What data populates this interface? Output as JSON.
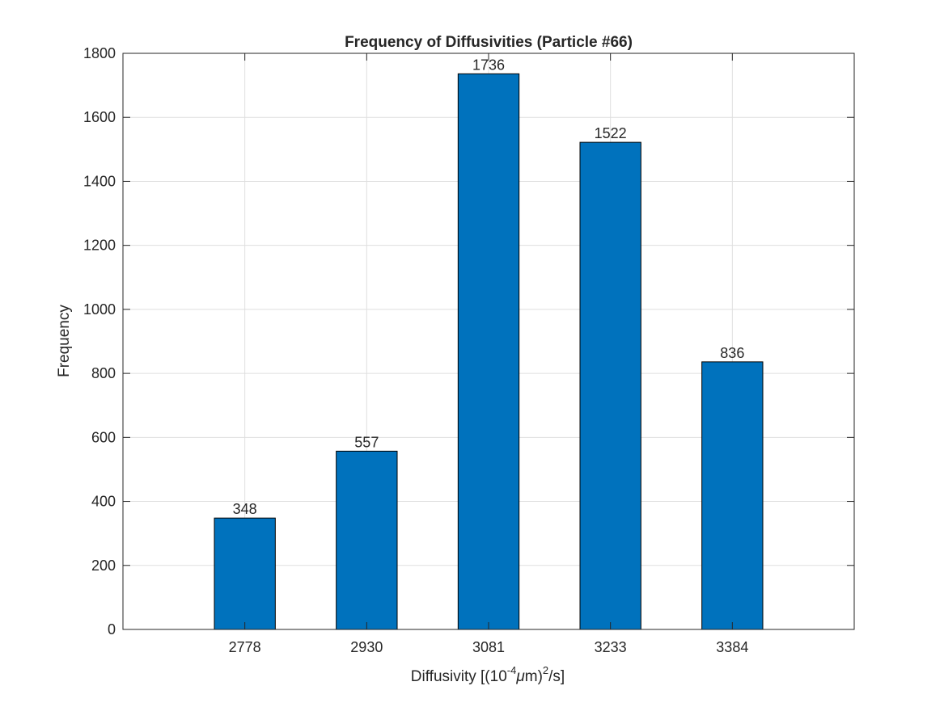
{
  "chart_data": {
    "type": "bar",
    "title": "Frequency of Diffusivities (Particle #66)",
    "xlabel": {
      "prefix": "Diffusivity [(10",
      "exponent": "-4",
      "mu": "μ",
      "unit": "m)",
      "power": "2",
      "suffix": "/s]"
    },
    "ylabel": "Frequency",
    "categories": [
      "2778",
      "2930",
      "3081",
      "3233",
      "3384"
    ],
    "values": [
      348,
      557,
      1736,
      1522,
      836
    ],
    "data_labels": [
      "348",
      "557",
      "1736",
      "1522",
      "836"
    ],
    "ylim": [
      0,
      1800
    ],
    "yticks": [
      "0",
      "200",
      "400",
      "600",
      "800",
      "1000",
      "1200",
      "1400",
      "1600",
      "1800"
    ],
    "grid": true,
    "bar_color": "#0072BD",
    "bar_edge_color": "#000000"
  }
}
